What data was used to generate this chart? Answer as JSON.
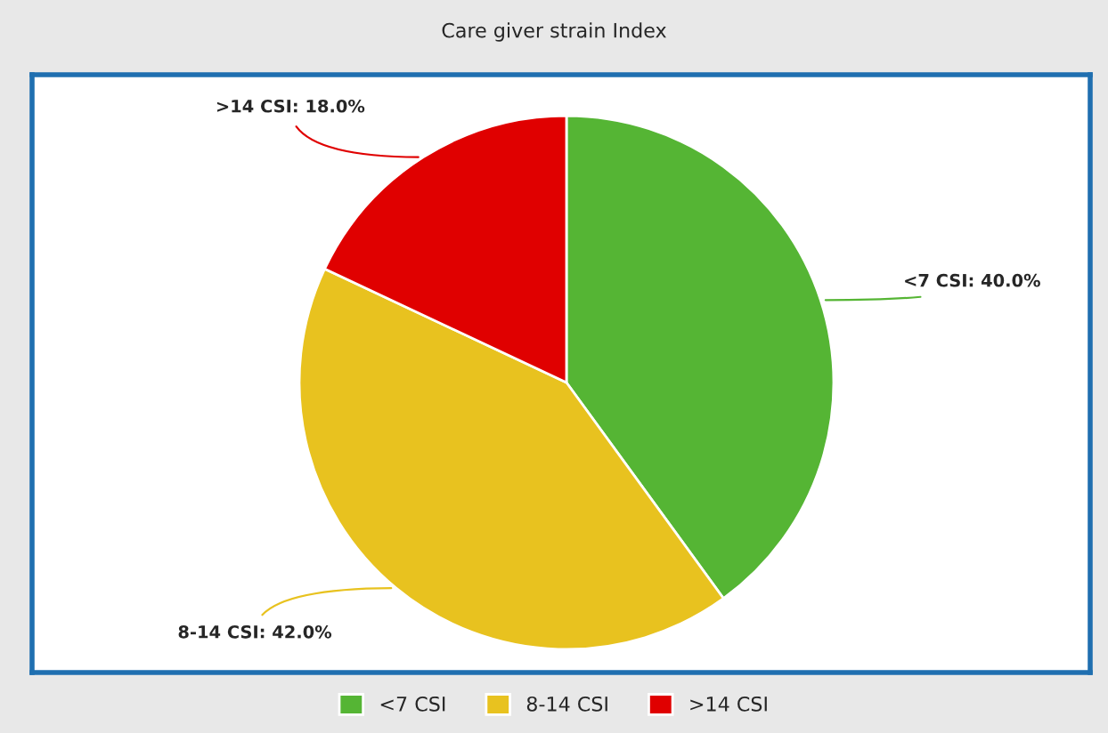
{
  "chart_data": {
    "type": "pie",
    "title": "Care giver strain Index",
    "categories": [
      "<7 CSI",
      "8-14 CSI",
      ">14 CSI"
    ],
    "values": [
      40.0,
      42.0,
      18.0
    ],
    "colors": [
      "#55b534",
      "#e8c21f",
      "#e00000"
    ],
    "value_labels": [
      "<7 CSI: 40.0%",
      "8-14 CSI: 42.0%",
      ">14 CSI: 18.0%"
    ],
    "legend": "bottom"
  }
}
